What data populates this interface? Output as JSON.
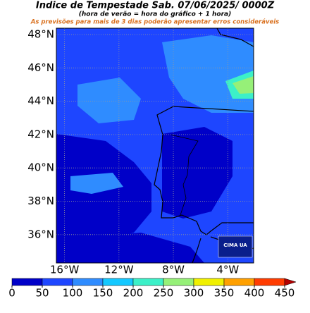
{
  "title": "Indice de Tempestade  Sab. 07/06/2025/ 0000Z",
  "subtitle": "(hora de verão = hora do gráfico + 1 hora)",
  "warning": "As previsões para mais de 3 dias poderão apresentar erros consideráveis",
  "logo": "CIMA UA",
  "map": {
    "ylim": [
      34.3,
      48.38
    ],
    "xlim": [
      -16.6,
      -2.1
    ],
    "lat_ticks": [
      {
        "value": 48,
        "label": "48°N"
      },
      {
        "value": 46,
        "label": "46°N"
      },
      {
        "value": 44,
        "label": "44°N"
      },
      {
        "value": 42,
        "label": "42°N"
      },
      {
        "value": 40,
        "label": "40°N"
      },
      {
        "value": 38,
        "label": "38°N"
      },
      {
        "value": 36,
        "label": "36°N"
      }
    ],
    "lon_ticks": [
      {
        "value": -16,
        "label": "16°W"
      },
      {
        "value": -12,
        "label": "12°W"
      },
      {
        "value": -8,
        "label": "8°W"
      },
      {
        "value": -4,
        "label": "4°W"
      }
    ]
  },
  "colorbar": {
    "ticks": [
      0,
      50,
      100,
      150,
      200,
      250,
      300,
      350,
      400,
      450
    ],
    "colors": [
      "#0000c8",
      "#1e46ff",
      "#2f8cff",
      "#14c8ff",
      "#3cf0c8",
      "#96f078",
      "#f0f000",
      "#ffa000",
      "#ff3c00"
    ],
    "extend_color": "#b40000"
  }
}
